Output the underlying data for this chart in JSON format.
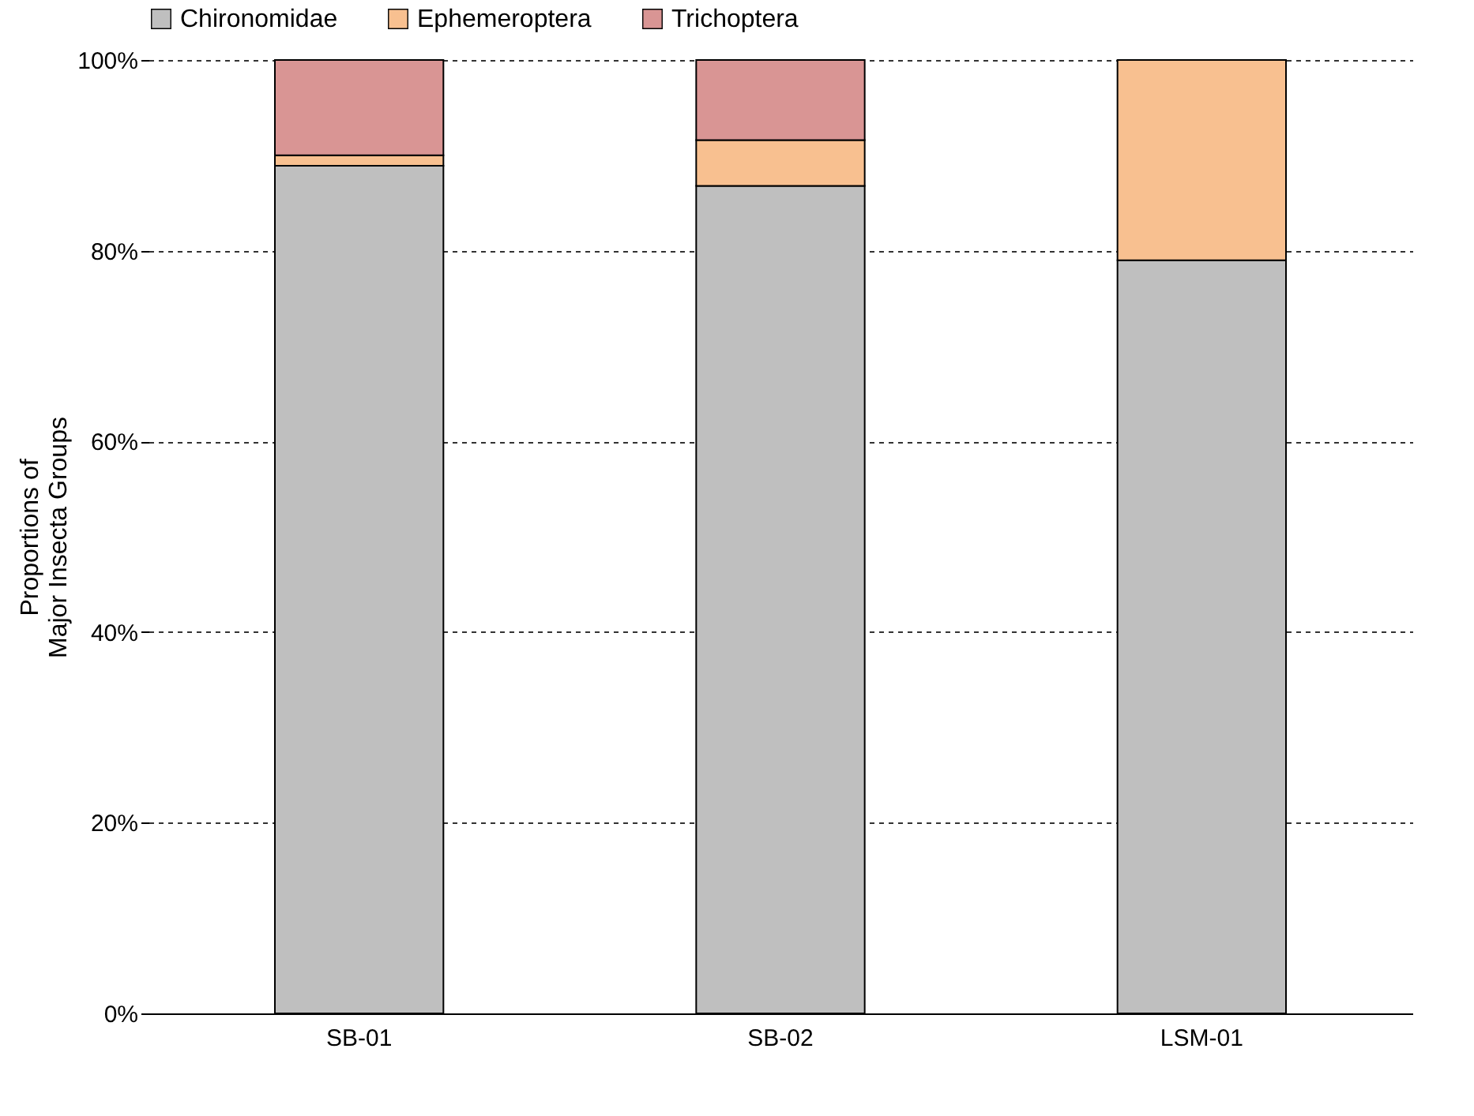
{
  "chart_data": {
    "type": "bar",
    "stacked": true,
    "ylabel": "Proportions of\nMajor Insecta Groups",
    "categories": [
      "SB-01",
      "SB-02",
      "LSM-01"
    ],
    "series": [
      {
        "name": "Chironomidae",
        "color": "#bfbfbf",
        "values": [
          88.9,
          86.8,
          79.0
        ]
      },
      {
        "name": "Ephemeroptera",
        "color": "#f8c090",
        "values": [
          1.1,
          4.8,
          21.0
        ]
      },
      {
        "name": "Trichoptera",
        "color": "#d99594",
        "values": [
          10.0,
          8.4,
          null
        ]
      }
    ],
    "ylim": [
      0,
      100
    ],
    "yticks": [
      {
        "value": 0,
        "label": "0%"
      },
      {
        "value": 20,
        "label": "20%"
      },
      {
        "value": 40,
        "label": "40%"
      },
      {
        "value": 60,
        "label": "60%"
      },
      {
        "value": 80,
        "label": "80%"
      },
      {
        "value": 100,
        "label": "100%"
      }
    ],
    "grid": "y",
    "legend": "top"
  }
}
